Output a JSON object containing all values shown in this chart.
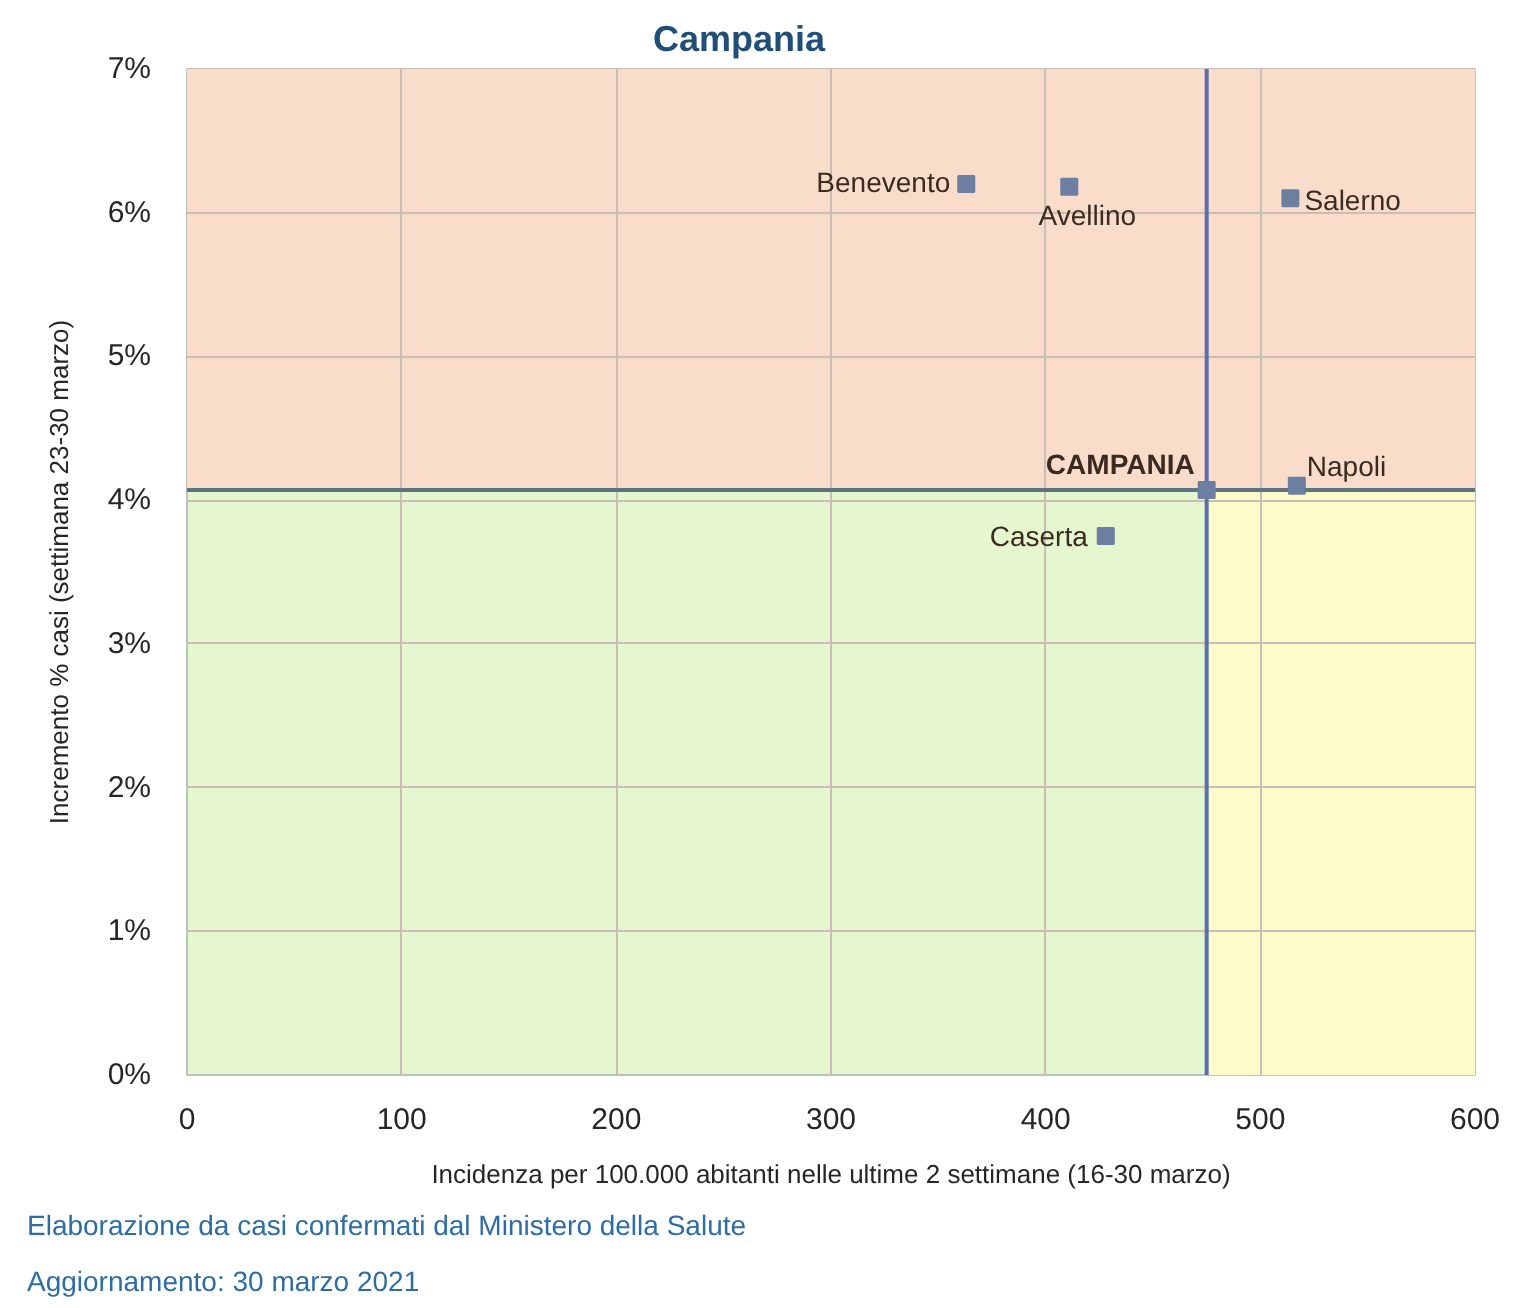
{
  "chart_data": {
    "type": "scatter",
    "title": "Campania",
    "xlabel": "Incidenza per 100.000 abitanti nelle ultime 2 settimane (16-30 marzo)",
    "ylabel": "Incremento % casi (settimana 23-30 marzo)",
    "x": [
      363,
      411,
      514,
      517,
      475,
      428
    ],
    "values": [
      6.2,
      6.18,
      6.1,
      4.1,
      4.07,
      3.75
    ],
    "color": "#6d7fa0",
    "marker": "square",
    "xlim": [
      0,
      600
    ],
    "ylim": [
      0,
      7
    ],
    "xticks": [
      0,
      100,
      200,
      300,
      400,
      500,
      600
    ],
    "yticks": [
      {
        "value": 0,
        "label": "0%"
      },
      {
        "value": 1,
        "label": "1%"
      },
      {
        "value": 2,
        "label": "2%"
      },
      {
        "value": 3,
        "label": "3%"
      },
      {
        "value": 4,
        "label": "4%"
      },
      {
        "value": 5,
        "label": "5%"
      },
      {
        "value": 6,
        "label": "6%"
      },
      {
        "value": 7,
        "label": "7%"
      }
    ],
    "grid": true,
    "ref_lines": [
      {
        "axis": "x",
        "value": 475,
        "color": "#5a6ea8"
      },
      {
        "axis": "y",
        "value": 4.07,
        "color": "#5b7585"
      }
    ],
    "bands": [
      {
        "axis": "x",
        "from": 475,
        "to": 600,
        "color": "#fdfbc9"
      },
      {
        "axis": "y",
        "from": 4.07,
        "to": 7,
        "color": "#fadccb"
      }
    ],
    "annotations": [
      {
        "text": "Benevento",
        "x": 363,
        "y": 6.2
      },
      {
        "text": "Avellino",
        "x": 411,
        "y": 6.18
      },
      {
        "text": "Salerno",
        "x": 514,
        "y": 6.1
      },
      {
        "text": "Napoli",
        "x": 517,
        "y": 4.1
      },
      {
        "text": "CAMPANIA",
        "x": 475,
        "y": 4.07
      },
      {
        "text": "Caserta",
        "x": 428,
        "y": 3.75
      },
      "Elaborazione da casi confermati dal Ministero della Salute",
      "Aggiornamento: 30 marzo 2021"
    ]
  }
}
